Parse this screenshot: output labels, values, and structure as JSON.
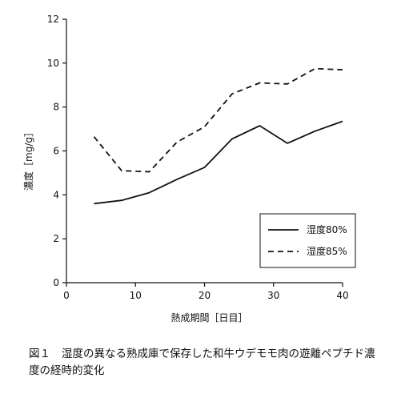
{
  "chart_data": {
    "type": "line",
    "xlabel": "熱成期間［日目］",
    "ylabel": "濃度［mg/g］",
    "xlim": [
      0,
      40
    ],
    "ylim": [
      0,
      12
    ],
    "x_ticks": [
      0,
      10,
      20,
      30,
      40
    ],
    "y_ticks": [
      0,
      2,
      4,
      6,
      8,
      10,
      12
    ],
    "grid": false,
    "legend_position": "bottom-right",
    "series": [
      {
        "name": "湿度80%",
        "style": "solid",
        "x": [
          4,
          8,
          12,
          16,
          20,
          24,
          28,
          32,
          36,
          40
        ],
        "y": [
          3.6,
          3.75,
          4.1,
          4.7,
          5.25,
          6.55,
          7.15,
          6.35,
          6.9,
          7.35
        ]
      },
      {
        "name": "湿度85%",
        "style": "dashed",
        "x": [
          4,
          8,
          12,
          16,
          20,
          24,
          28,
          32,
          36,
          40
        ],
        "y": [
          6.65,
          5.1,
          5.05,
          6.4,
          7.1,
          8.6,
          9.1,
          9.05,
          9.75,
          9.7
        ]
      }
    ]
  },
  "caption": {
    "number": "図１",
    "text": "湿度の異なる熟成庫で保存した和牛ウデモモ肉の遊離ペプチド濃度の経時的変化"
  }
}
